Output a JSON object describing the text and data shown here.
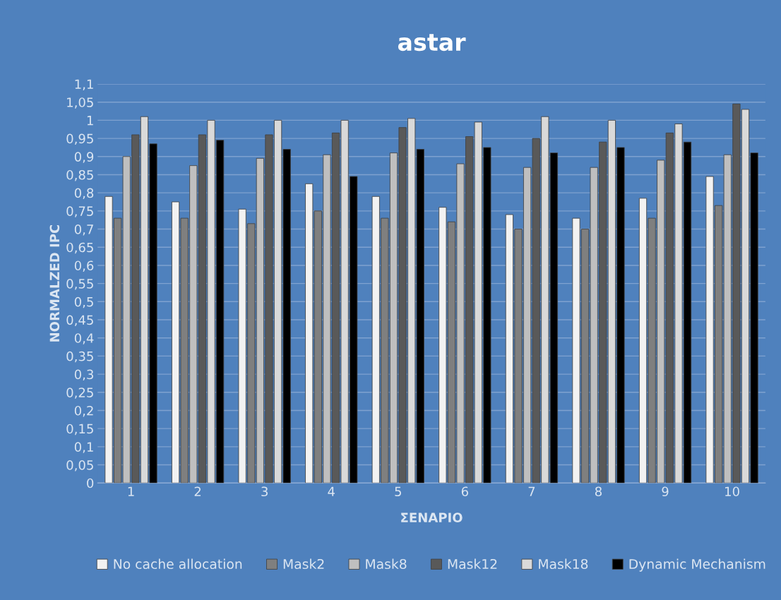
{
  "chart_data": {
    "type": "bar",
    "title": "astar",
    "xlabel": "ΣΕΝΑΡΙΟ",
    "ylabel": "NORMALZED IPC",
    "categories": [
      "1",
      "2",
      "3",
      "4",
      "5",
      "6",
      "7",
      "8",
      "9",
      "10"
    ],
    "series": [
      {
        "name": "No cache allocation",
        "color": "#f2f2f2",
        "values": [
          0.79,
          0.775,
          0.755,
          0.825,
          0.79,
          0.76,
          0.74,
          0.73,
          0.785,
          0.845
        ]
      },
      {
        "name": "Mask2",
        "color": "#7f7f7f",
        "values": [
          0.73,
          0.73,
          0.715,
          0.75,
          0.73,
          0.72,
          0.7,
          0.7,
          0.73,
          0.765
        ]
      },
      {
        "name": "Mask8",
        "color": "#bfbfbf",
        "values": [
          0.9,
          0.875,
          0.895,
          0.905,
          0.91,
          0.88,
          0.87,
          0.87,
          0.89,
          0.905
        ]
      },
      {
        "name": "Mask12",
        "color": "#595959",
        "values": [
          0.96,
          0.96,
          0.96,
          0.965,
          0.98,
          0.955,
          0.95,
          0.94,
          0.965,
          1.045
        ]
      },
      {
        "name": "Mask18",
        "color": "#d9d9d9",
        "values": [
          1.01,
          1.0,
          1.0,
          1.0,
          1.005,
          0.995,
          1.01,
          1.0,
          0.99,
          1.03
        ]
      },
      {
        "name": "Dynamic Mechanism",
        "color": "#000000",
        "values": [
          0.935,
          0.945,
          0.92,
          0.845,
          0.92,
          0.925,
          0.91,
          0.925,
          0.94,
          0.91
        ]
      }
    ],
    "ylim": [
      0,
      1.1
    ],
    "yticks": [
      0,
      {
        "value": 0.05,
        "label": "0,05"
      },
      {
        "value": 0.1,
        "label": "0,1"
      },
      {
        "value": 0.15,
        "label": "0,15"
      },
      {
        "value": 0.2,
        "label": "0,2"
      },
      {
        "value": 0.25,
        "label": "0,25"
      },
      {
        "value": 0.3,
        "label": "0,3"
      },
      {
        "value": 0.35,
        "label": "0,35"
      },
      {
        "value": 0.4,
        "label": "0,4"
      },
      {
        "value": 0.45,
        "label": "0,45"
      },
      {
        "value": 0.5,
        "label": "0,5"
      },
      {
        "value": 0.55,
        "label": "0,55"
      },
      {
        "value": 0.6,
        "label": "0,6"
      },
      {
        "value": 0.65,
        "label": "0,65"
      },
      {
        "value": 0.7,
        "label": "0,7"
      },
      {
        "value": 0.75,
        "label": "0,75"
      },
      {
        "value": 0.8,
        "label": "0,8"
      },
      {
        "value": 0.85,
        "label": "0,85"
      },
      {
        "value": 0.9,
        "label": "0,9"
      },
      {
        "value": 0.95,
        "label": "0,95"
      },
      1,
      {
        "value": 1.05,
        "label": "1,05"
      },
      {
        "value": 1.1,
        "label": "1,1"
      }
    ],
    "grid": "y",
    "legend": "bottom"
  }
}
